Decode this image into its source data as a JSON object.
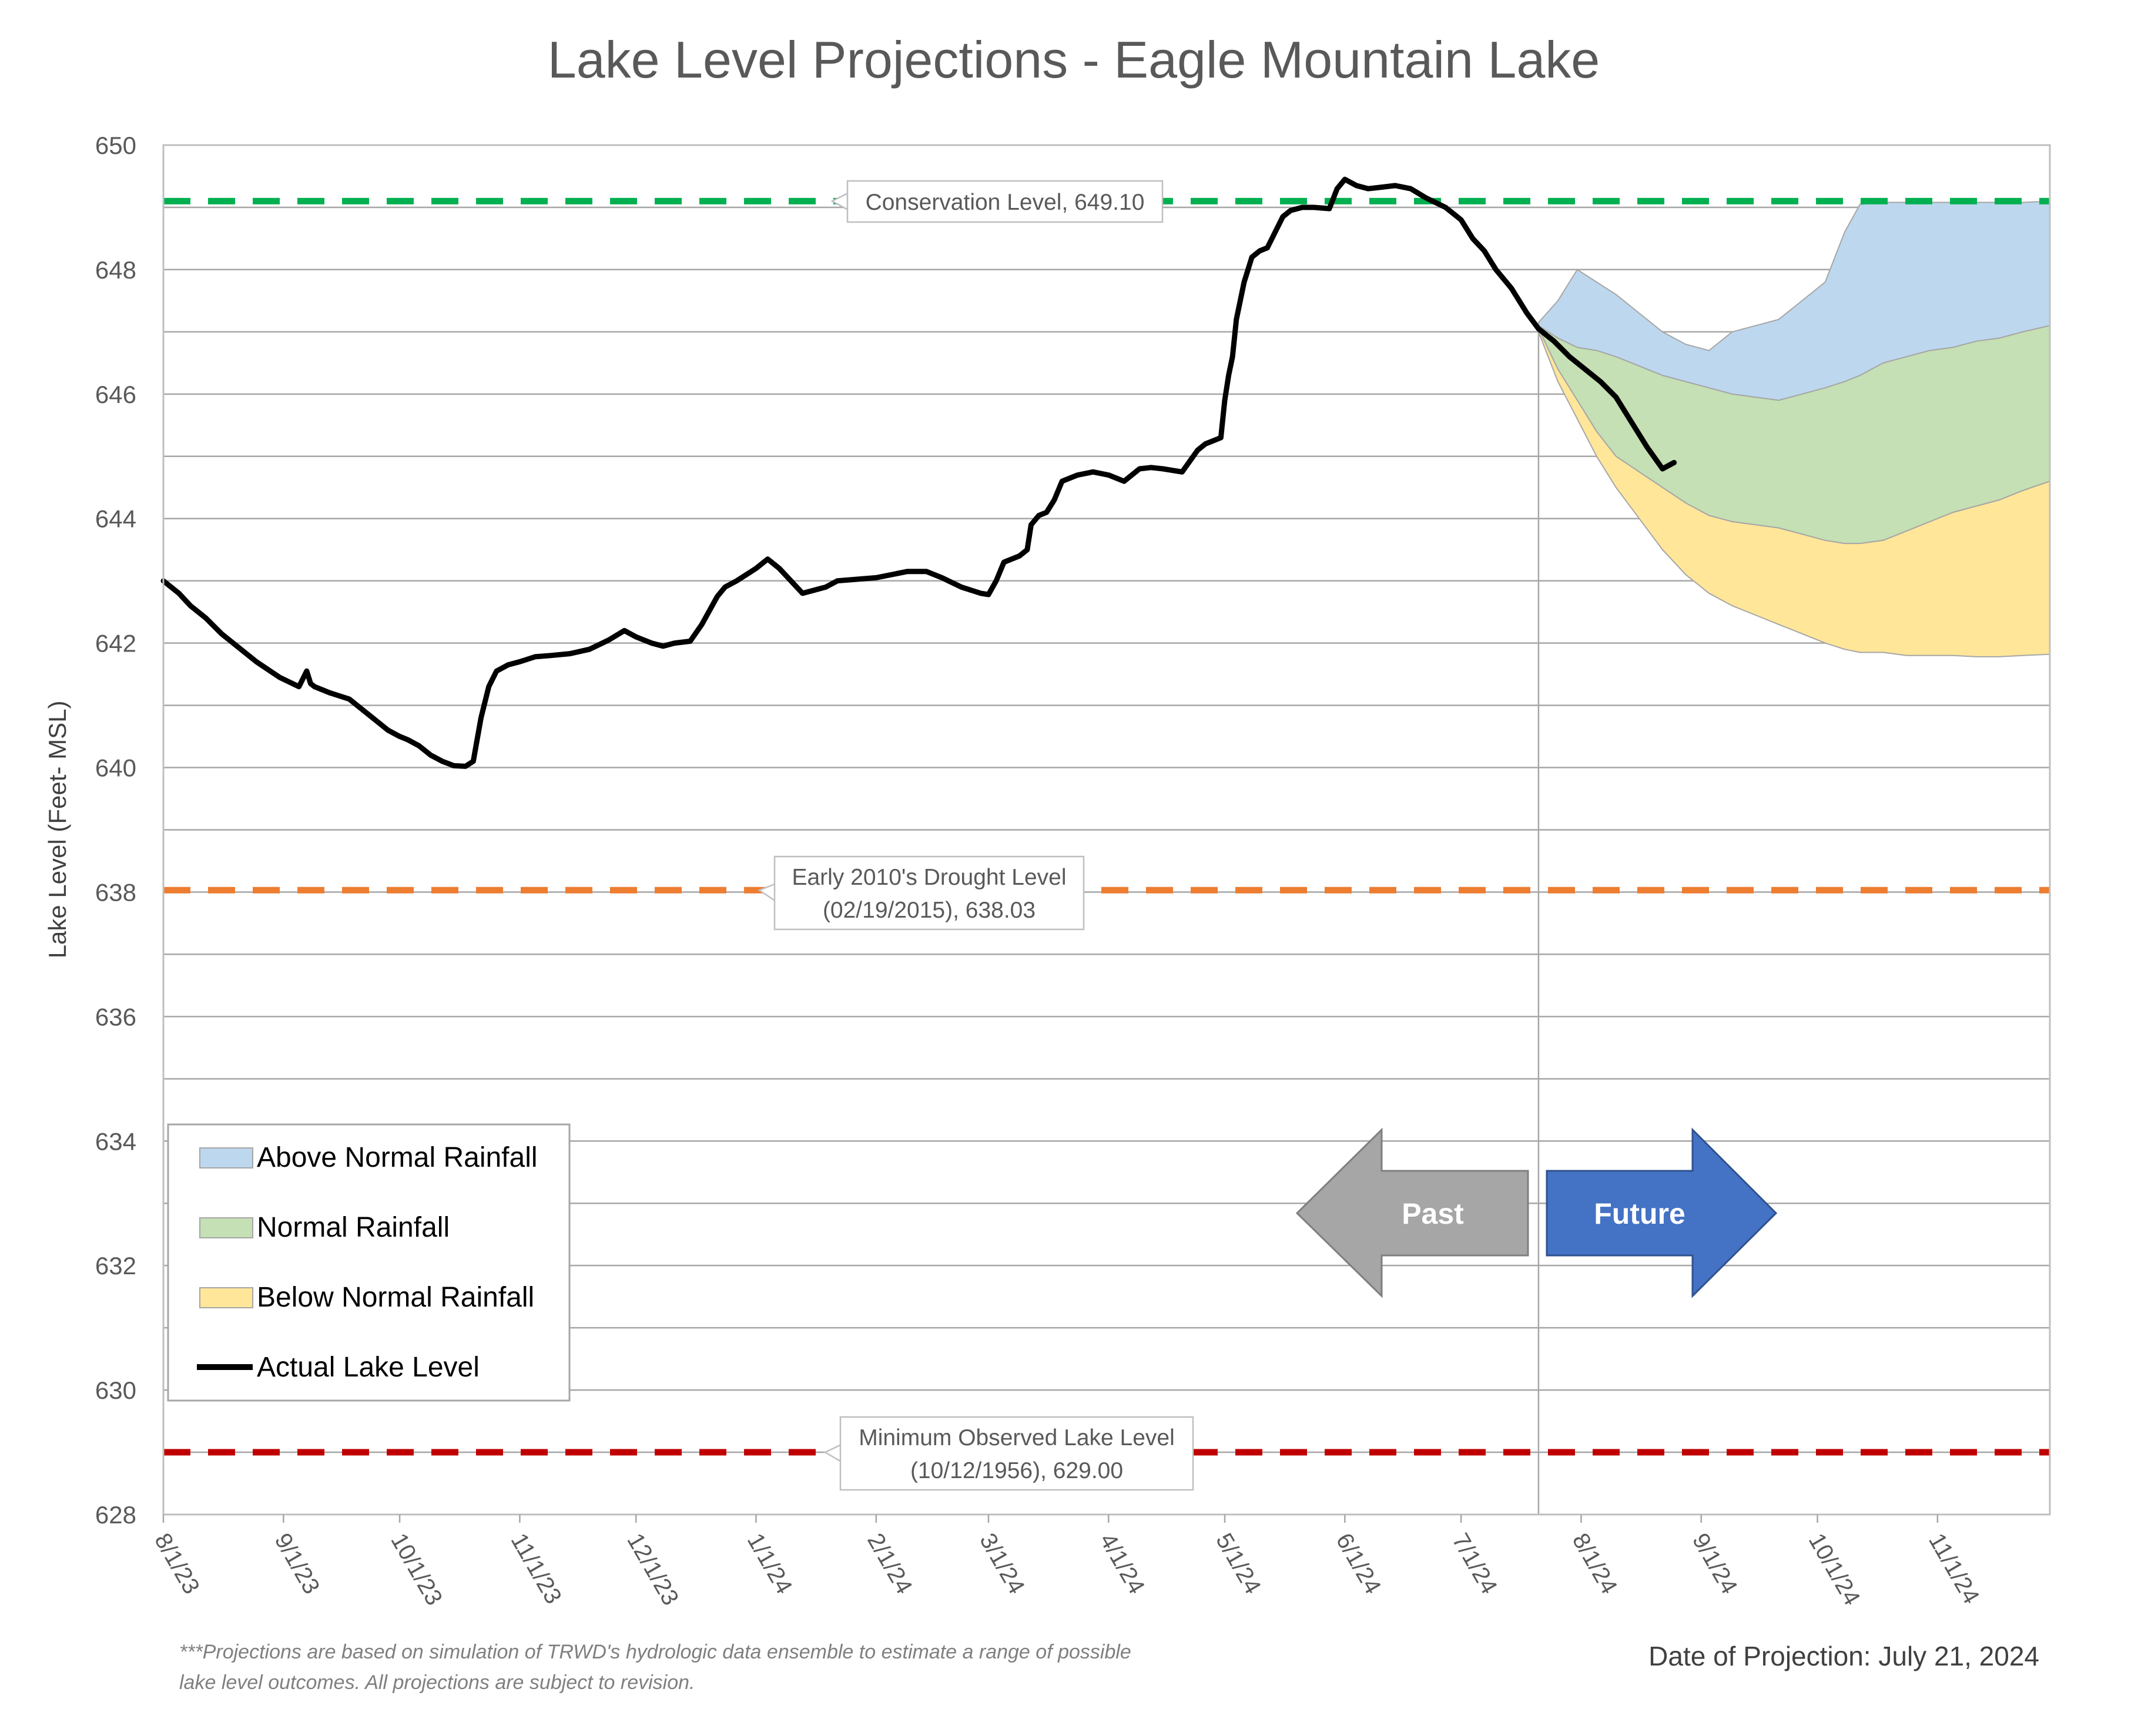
{
  "chart_data": {
    "type": "area",
    "title": "Lake Level Projections - Eagle Mountain Lake",
    "ylabel": "Lake Level (Feet- MSL)",
    "xlabel": "",
    "ylim": [
      628,
      650
    ],
    "yticks": [
      "628",
      "630",
      "632",
      "634",
      "636",
      "638",
      "640",
      "642",
      "644",
      "646",
      "648",
      "650"
    ],
    "y_minor_step": 1,
    "x_range": [
      "2023-08-01",
      "2024-11-30"
    ],
    "xticks": [
      {
        "date": "2023-08-01",
        "label": "8/1/23"
      },
      {
        "date": "2023-09-01",
        "label": "9/1/23"
      },
      {
        "date": "2023-10-01",
        "label": "10/1/23"
      },
      {
        "date": "2023-11-01",
        "label": "11/1/23"
      },
      {
        "date": "2023-12-01",
        "label": "12/1/23"
      },
      {
        "date": "2024-01-01",
        "label": "1/1/24"
      },
      {
        "date": "2024-02-01",
        "label": "2/1/24"
      },
      {
        "date": "2024-03-01",
        "label": "3/1/24"
      },
      {
        "date": "2024-04-01",
        "label": "4/1/24"
      },
      {
        "date": "2024-05-01",
        "label": "5/1/24"
      },
      {
        "date": "2024-06-01",
        "label": "6/1/24"
      },
      {
        "date": "2024-07-01",
        "label": "7/1/24"
      },
      {
        "date": "2024-08-01",
        "label": "8/1/24"
      },
      {
        "date": "2024-09-01",
        "label": "9/1/24"
      },
      {
        "date": "2024-10-01",
        "label": "10/1/24"
      },
      {
        "date": "2024-11-01",
        "label": "11/1/24"
      }
    ],
    "projection_date": "2024-07-21",
    "reference_lines": [
      {
        "value": 649.1,
        "color": "#00b050",
        "label": "Conservation Level, 649.10"
      },
      {
        "value": 638.03,
        "color": "#ed7d31",
        "label": "Early 2010's Drought Level (02/19/2015), 638.03"
      },
      {
        "value": 629.0,
        "color": "#c00000",
        "label": "Minimum Observed Lake Level (10/12/1956), 629.00"
      }
    ],
    "legend_position": "bottom-left",
    "series": [
      {
        "name": "Actual Lake Level",
        "kind": "line",
        "color": "#000000",
        "x": [
          "2023-08-01",
          "2023-08-05",
          "2023-08-08",
          "2023-08-12",
          "2023-08-16",
          "2023-08-20",
          "2023-08-25",
          "2023-08-31",
          "2023-09-05",
          "2023-09-07",
          "2023-09-08",
          "2023-09-09",
          "2023-09-11",
          "2023-09-13",
          "2023-09-18",
          "2023-09-22",
          "2023-09-28",
          "2023-10-01",
          "2023-10-03",
          "2023-10-06",
          "2023-10-09",
          "2023-10-12",
          "2023-10-15",
          "2023-10-18",
          "2023-10-20",
          "2023-10-22",
          "2023-10-24",
          "2023-10-26",
          "2023-10-29",
          "2023-11-01",
          "2023-11-05",
          "2023-11-09",
          "2023-11-14",
          "2023-11-19",
          "2023-11-24",
          "2023-11-28",
          "2023-12-01",
          "2023-12-05",
          "2023-12-08",
          "2023-12-11",
          "2023-12-15",
          "2023-12-18",
          "2023-12-22",
          "2023-12-24",
          "2023-12-27",
          "2024-01-01",
          "2024-01-04",
          "2024-01-07",
          "2024-01-10",
          "2024-01-13",
          "2024-01-16",
          "2024-01-19",
          "2024-01-22",
          "2024-01-28",
          "2024-02-01",
          "2024-02-05",
          "2024-02-09",
          "2024-02-14",
          "2024-02-18",
          "2024-02-23",
          "2024-02-28",
          "2024-03-01",
          "2024-03-03",
          "2024-03-05",
          "2024-03-09",
          "2024-03-11",
          "2024-03-12",
          "2024-03-14",
          "2024-03-16",
          "2024-03-18",
          "2024-03-20",
          "2024-03-24",
          "2024-03-28",
          "2024-04-01",
          "2024-04-05",
          "2024-04-09",
          "2024-04-12",
          "2024-04-15",
          "2024-04-20",
          "2024-04-24",
          "2024-04-26",
          "2024-04-28",
          "2024-04-30",
          "2024-05-01",
          "2024-05-02",
          "2024-05-03",
          "2024-05-04",
          "2024-05-06",
          "2024-05-08",
          "2024-05-10",
          "2024-05-12",
          "2024-05-14",
          "2024-05-16",
          "2024-05-18",
          "2024-05-21",
          "2024-05-24",
          "2024-05-28",
          "2024-05-30",
          "2024-06-01",
          "2024-06-04",
          "2024-06-07",
          "2024-06-10",
          "2024-06-14",
          "2024-06-18",
          "2024-06-22",
          "2024-06-27",
          "2024-07-01",
          "2024-07-04",
          "2024-07-07",
          "2024-07-10",
          "2024-07-14",
          "2024-07-18",
          "2024-07-21",
          "2024-07-25",
          "2024-07-29",
          "2024-08-02",
          "2024-08-06",
          "2024-08-10",
          "2024-08-14",
          "2024-08-18",
          "2024-08-22",
          "2024-08-25"
        ],
        "y": [
          643.0,
          642.8,
          642.6,
          642.4,
          642.15,
          641.95,
          641.7,
          641.45,
          641.3,
          641.55,
          641.35,
          641.3,
          641.25,
          641.2,
          641.1,
          640.9,
          640.6,
          640.5,
          640.45,
          640.35,
          640.2,
          640.1,
          640.03,
          640.02,
          640.1,
          640.8,
          641.3,
          641.55,
          641.65,
          641.7,
          641.78,
          641.8,
          641.83,
          641.9,
          642.05,
          642.2,
          642.1,
          642.0,
          641.95,
          642.0,
          642.03,
          642.3,
          642.75,
          642.9,
          643.0,
          643.2,
          643.35,
          643.2,
          643.0,
          642.8,
          642.85,
          642.9,
          643.0,
          643.03,
          643.05,
          643.1,
          643.15,
          643.15,
          643.05,
          642.9,
          642.8,
          642.78,
          643.0,
          643.3,
          643.4,
          643.5,
          643.9,
          644.05,
          644.1,
          644.3,
          644.6,
          644.7,
          644.75,
          644.7,
          644.6,
          644.8,
          644.82,
          644.8,
          644.75,
          645.1,
          645.2,
          645.25,
          645.3,
          645.9,
          646.3,
          646.6,
          647.2,
          647.8,
          648.2,
          648.3,
          648.35,
          648.6,
          648.85,
          648.95,
          649.0,
          649.0,
          648.98,
          649.3,
          649.45,
          649.35,
          649.3,
          649.32,
          649.35,
          649.3,
          649.15,
          649.0,
          648.8,
          648.5,
          648.3,
          648.0,
          647.7,
          647.3,
          647.05,
          646.85,
          646.6,
          646.4,
          646.2,
          645.95,
          645.55,
          645.15,
          644.8,
          644.9
        ]
      },
      {
        "name": "Above Normal Rainfall",
        "kind": "band",
        "color": "#bdd7ee",
        "x": [
          "2024-07-21",
          "2024-07-26",
          "2024-07-31",
          "2024-08-05",
          "2024-08-10",
          "2024-08-16",
          "2024-08-22",
          "2024-08-28",
          "2024-09-03",
          "2024-09-09",
          "2024-09-15",
          "2024-09-21",
          "2024-09-27",
          "2024-10-03",
          "2024-10-08",
          "2024-10-12",
          "2024-10-18",
          "2024-10-24",
          "2024-10-30",
          "2024-11-05",
          "2024-11-11",
          "2024-11-17",
          "2024-11-23",
          "2024-11-30"
        ],
        "y_low": [
          647.1,
          646.9,
          646.75,
          646.7,
          646.6,
          646.45,
          646.3,
          646.2,
          646.1,
          646.0,
          645.95,
          645.9,
          646.0,
          646.1,
          646.2,
          646.3,
          646.5,
          646.6,
          646.7,
          646.75,
          646.85,
          646.9,
          647.0,
          647.1
        ],
        "y_high": [
          647.15,
          647.5,
          648.0,
          647.8,
          647.6,
          647.3,
          647.0,
          646.8,
          646.7,
          647.0,
          647.1,
          647.2,
          647.5,
          647.8,
          648.6,
          649.05,
          649.08,
          649.08,
          649.08,
          649.08,
          649.08,
          649.08,
          649.08,
          649.1
        ]
      },
      {
        "name": "Normal Rainfall",
        "kind": "band",
        "color": "#c5e0b4",
        "x": [
          "2024-07-21",
          "2024-07-26",
          "2024-07-31",
          "2024-08-05",
          "2024-08-10",
          "2024-08-16",
          "2024-08-22",
          "2024-08-28",
          "2024-09-03",
          "2024-09-09",
          "2024-09-15",
          "2024-09-21",
          "2024-09-27",
          "2024-10-03",
          "2024-10-08",
          "2024-10-12",
          "2024-10-18",
          "2024-10-24",
          "2024-10-30",
          "2024-11-05",
          "2024-11-11",
          "2024-11-17",
          "2024-11-23",
          "2024-11-30"
        ],
        "y_low": [
          647.05,
          646.4,
          645.9,
          645.4,
          645.0,
          644.75,
          644.5,
          644.25,
          644.05,
          643.95,
          643.9,
          643.85,
          643.75,
          643.65,
          643.6,
          643.6,
          643.65,
          643.8,
          643.95,
          644.1,
          644.2,
          644.3,
          644.45,
          644.6
        ],
        "y_high": [
          647.1,
          646.9,
          646.75,
          646.7,
          646.6,
          646.45,
          646.3,
          646.2,
          646.1,
          646.0,
          645.95,
          645.9,
          646.0,
          646.1,
          646.2,
          646.3,
          646.5,
          646.6,
          646.7,
          646.75,
          646.85,
          646.9,
          647.0,
          647.1
        ]
      },
      {
        "name": "Below Normal Rainfall",
        "kind": "band",
        "color": "#ffe699",
        "x": [
          "2024-07-21",
          "2024-07-26",
          "2024-07-31",
          "2024-08-05",
          "2024-08-10",
          "2024-08-16",
          "2024-08-22",
          "2024-08-28",
          "2024-09-03",
          "2024-09-09",
          "2024-09-15",
          "2024-09-21",
          "2024-09-27",
          "2024-10-03",
          "2024-10-08",
          "2024-10-12",
          "2024-10-18",
          "2024-10-24",
          "2024-10-30",
          "2024-11-05",
          "2024-11-11",
          "2024-11-17",
          "2024-11-23",
          "2024-11-30"
        ],
        "y_low": [
          647.0,
          646.2,
          645.6,
          645.0,
          644.5,
          644.0,
          643.5,
          643.1,
          642.8,
          642.6,
          642.45,
          642.3,
          642.15,
          642.0,
          641.9,
          641.85,
          641.85,
          641.8,
          641.8,
          641.8,
          641.78,
          641.78,
          641.8,
          641.82
        ],
        "y_high": [
          647.05,
          646.4,
          645.9,
          645.4,
          645.0,
          644.75,
          644.5,
          644.25,
          644.05,
          643.95,
          643.9,
          643.85,
          643.75,
          643.65,
          643.6,
          643.6,
          643.65,
          643.8,
          643.95,
          644.1,
          644.2,
          644.3,
          644.45,
          644.6
        ]
      }
    ],
    "upper_envelope": {
      "x": [
        "2024-07-21",
        "2024-07-26",
        "2024-07-31",
        "2024-08-05",
        "2024-08-10",
        "2024-08-16",
        "2024-08-22",
        "2024-08-28",
        "2024-09-03",
        "2024-09-09",
        "2024-09-15",
        "2024-09-21",
        "2024-09-27",
        "2024-10-03",
        "2024-10-08",
        "2024-10-12",
        "2024-10-18",
        "2024-10-24",
        "2024-10-30",
        "2024-11-05",
        "2024-11-11",
        "2024-11-17",
        "2024-11-23",
        "2024-11-30"
      ],
      "y": [
        647.15,
        647.3,
        647.6,
        647.5,
        647.3,
        647.1,
        646.9,
        646.7,
        646.6,
        646.9,
        647.1,
        647.2,
        647.4,
        647.5,
        647.8,
        648.3,
        648.9,
        649.05,
        649.08,
        649.08,
        649.08,
        649.08,
        649.08,
        649.1
      ],
      "y_normal_top": [
        647.1,
        646.9,
        646.8,
        646.75,
        646.7,
        646.6,
        646.5,
        646.4,
        646.35,
        646.4,
        646.5,
        646.6,
        646.75,
        646.9,
        647.1,
        647.3,
        647.45,
        647.55,
        647.6,
        647.7,
        647.8,
        647.95,
        648.0,
        648.0
      ]
    },
    "arrows": [
      {
        "label": "Past",
        "color": "#a6a6a6",
        "direction": "left"
      },
      {
        "label": "Future",
        "color": "#4472c4",
        "direction": "right"
      }
    ]
  },
  "footnote": "***Projections are based on simulation of TRWD's hydrologic data ensemble to estimate a range of possible lake level outcomes.  All projections are subject to revision.",
  "date_of_projection": "Date of Projection: July 21, 2024"
}
